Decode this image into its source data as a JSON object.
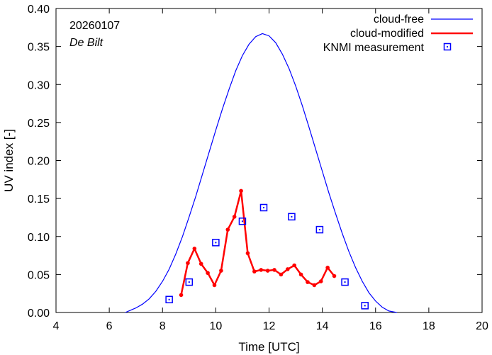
{
  "chart_data": {
    "type": "line",
    "xlabel": "Time  [UTC]",
    "ylabel": "UV index  [-]",
    "xlim": [
      4,
      20
    ],
    "ylim": [
      0,
      0.4
    ],
    "xticks": [
      4,
      6,
      8,
      10,
      12,
      14,
      16,
      18,
      20
    ],
    "yticks": [
      0.0,
      0.05,
      0.1,
      0.15,
      0.2,
      0.25,
      0.3,
      0.35,
      0.4
    ],
    "xtick_labels": [
      "4",
      "6",
      "8",
      "10",
      "12",
      "14",
      "16",
      "18",
      "20"
    ],
    "ytick_labels": [
      "0.00",
      "0.05",
      "0.10",
      "0.15",
      "0.20",
      "0.25",
      "0.30",
      "0.35",
      "0.40"
    ],
    "grid": false,
    "legend_position": "top-right",
    "annotations": [
      {
        "text": "20260107",
        "style": "normal"
      },
      {
        "text": "De Bilt",
        "style": "italic"
      }
    ],
    "series": [
      {
        "name": "cloud-free",
        "kind": "line",
        "color": "#0000ff",
        "x": [
          6.6,
          6.8,
          7.0,
          7.25,
          7.5,
          7.75,
          8.0,
          8.25,
          8.5,
          8.75,
          9.0,
          9.25,
          9.5,
          9.75,
          10.0,
          10.25,
          10.5,
          10.75,
          11.0,
          11.25,
          11.5,
          11.75,
          12.0,
          12.25,
          12.5,
          12.75,
          13.0,
          13.25,
          13.5,
          13.75,
          14.0,
          14.25,
          14.5,
          14.75,
          15.0,
          15.25,
          15.5,
          15.75,
          16.0,
          16.25,
          16.5,
          16.8
        ],
        "y": [
          0.0,
          0.003,
          0.006,
          0.011,
          0.018,
          0.028,
          0.041,
          0.057,
          0.077,
          0.1,
          0.126,
          0.153,
          0.182,
          0.211,
          0.24,
          0.268,
          0.294,
          0.318,
          0.338,
          0.353,
          0.363,
          0.367,
          0.364,
          0.355,
          0.34,
          0.321,
          0.298,
          0.272,
          0.244,
          0.215,
          0.186,
          0.157,
          0.13,
          0.104,
          0.08,
          0.059,
          0.041,
          0.026,
          0.015,
          0.007,
          0.002,
          0.0
        ]
      },
      {
        "name": "cloud-modified",
        "kind": "line-markers",
        "color": "#ff0000",
        "x": [
          8.7,
          8.95,
          9.2,
          9.45,
          9.7,
          9.95,
          10.2,
          10.45,
          10.7,
          10.95,
          11.2,
          11.45,
          11.7,
          11.95,
          12.2,
          12.45,
          12.7,
          12.95,
          13.2,
          13.45,
          13.7,
          13.95,
          14.2,
          14.45
        ],
        "y": [
          0.023,
          0.065,
          0.084,
          0.064,
          0.052,
          0.036,
          0.055,
          0.109,
          0.126,
          0.16,
          0.078,
          0.054,
          0.056,
          0.055,
          0.056,
          0.05,
          0.057,
          0.062,
          0.05,
          0.04,
          0.036,
          0.041,
          0.059,
          0.048
        ]
      },
      {
        "name": "KNMI measurement",
        "kind": "markers",
        "color": "#0000ff",
        "x": [
          8.25,
          9.0,
          10.0,
          11.0,
          11.8,
          12.85,
          13.9,
          14.85,
          15.6
        ],
        "y": [
          0.017,
          0.04,
          0.092,
          0.12,
          0.138,
          0.126,
          0.109,
          0.04,
          0.009
        ]
      }
    ]
  }
}
